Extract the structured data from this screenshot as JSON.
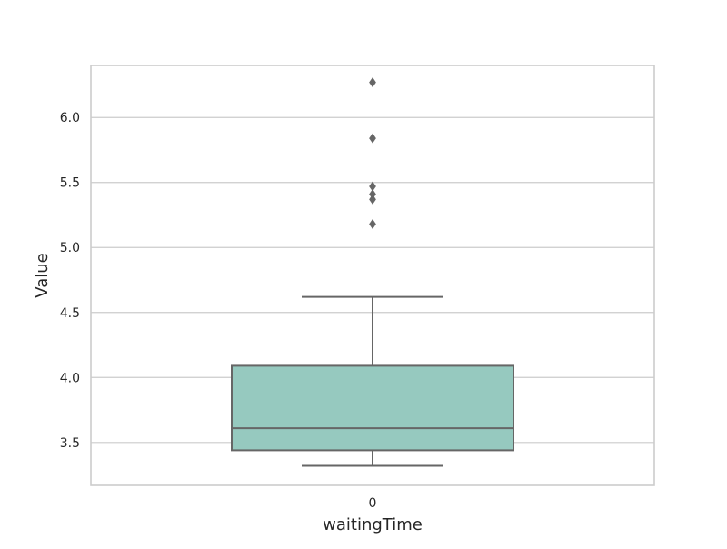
{
  "chart_data": {
    "type": "box",
    "categories": [
      "0"
    ],
    "xlabel": "waitingTime",
    "ylabel": "Value",
    "ylim": [
      3.17,
      6.4
    ],
    "yticks": [
      3.5,
      4.0,
      4.5,
      5.0,
      5.5,
      6.0
    ],
    "ytick_labels": [
      "3.5",
      "4.0",
      "4.5",
      "5.0",
      "5.5",
      "6.0"
    ],
    "grid": "horizontal",
    "box": {
      "category": "0",
      "whisker_low": 3.32,
      "q1": 3.44,
      "median": 3.61,
      "q3": 4.09,
      "whisker_high": 4.62,
      "outliers": [
        5.18,
        5.37,
        5.41,
        5.47,
        5.84,
        6.27
      ]
    },
    "colors": {
      "box_fill": "#96c9bf",
      "line": "#666666",
      "grid": "#cccccc",
      "frame": "#cccccc",
      "text": "#262626"
    }
  }
}
